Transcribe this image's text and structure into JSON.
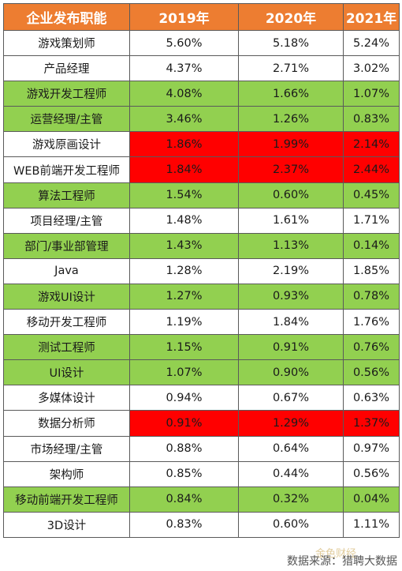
{
  "chart_data": {
    "type": "table",
    "columns": [
      "企业发布职能",
      "2019年",
      "2020年",
      "2021年"
    ],
    "rows": [
      {
        "name": "游戏策划师",
        "values": [
          "5.60%",
          "5.18%",
          "5.24%"
        ],
        "style": "w"
      },
      {
        "name": "产品经理",
        "values": [
          "4.37%",
          "2.71%",
          "3.02%"
        ],
        "style": "w"
      },
      {
        "name": "游戏开发工程师",
        "values": [
          "4.08%",
          "1.66%",
          "1.07%"
        ],
        "style": "g"
      },
      {
        "name": "运营经理/主管",
        "values": [
          "3.46%",
          "1.26%",
          "0.83%"
        ],
        "style": "g"
      },
      {
        "name": "游戏原画设计",
        "values": [
          "1.86%",
          "1.99%",
          "2.14%"
        ],
        "style": "r"
      },
      {
        "name": "WEB前端开发工程师",
        "values": [
          "1.84%",
          "2.37%",
          "2.44%"
        ],
        "style": "r"
      },
      {
        "name": "算法工程师",
        "values": [
          "1.54%",
          "0.60%",
          "0.45%"
        ],
        "style": "g"
      },
      {
        "name": "项目经理/主管",
        "values": [
          "1.48%",
          "1.61%",
          "1.71%"
        ],
        "style": "w"
      },
      {
        "name": "部门/事业部管理",
        "values": [
          "1.43%",
          "1.13%",
          "0.14%"
        ],
        "style": "g"
      },
      {
        "name": "Java",
        "values": [
          "1.28%",
          "2.19%",
          "1.85%"
        ],
        "style": "w"
      },
      {
        "name": "游戏UI设计",
        "values": [
          "1.27%",
          "0.93%",
          "0.78%"
        ],
        "style": "g"
      },
      {
        "name": "移动开发工程师",
        "values": [
          "1.19%",
          "1.84%",
          "1.76%"
        ],
        "style": "w"
      },
      {
        "name": "测试工程师",
        "values": [
          "1.15%",
          "0.91%",
          "0.76%"
        ],
        "style": "g"
      },
      {
        "name": "UI设计",
        "values": [
          "1.07%",
          "0.90%",
          "0.56%"
        ],
        "style": "g"
      },
      {
        "name": "多媒体设计",
        "values": [
          "0.94%",
          "0.67%",
          "0.63%"
        ],
        "style": "w"
      },
      {
        "name": "数据分析师",
        "values": [
          "0.91%",
          "1.29%",
          "1.37%"
        ],
        "style": "r"
      },
      {
        "name": "市场经理/主管",
        "values": [
          "0.88%",
          "0.64%",
          "0.97%"
        ],
        "style": "w"
      },
      {
        "name": "架构师",
        "values": [
          "0.85%",
          "0.44%",
          "0.56%"
        ],
        "style": "w"
      },
      {
        "name": "移动前端开发工程师",
        "values": [
          "0.84%",
          "0.32%",
          "0.04%"
        ],
        "style": "g"
      },
      {
        "name": "3D设计",
        "values": [
          "0.83%",
          "0.60%",
          "1.11%"
        ],
        "style": "w"
      }
    ]
  },
  "colors": {
    "header": "#ed7d31",
    "decline": "#92d050",
    "growth": "#ff0000"
  },
  "footer": {
    "source": "数据来源：猎聘大数据"
  },
  "watermark": "金色财经"
}
